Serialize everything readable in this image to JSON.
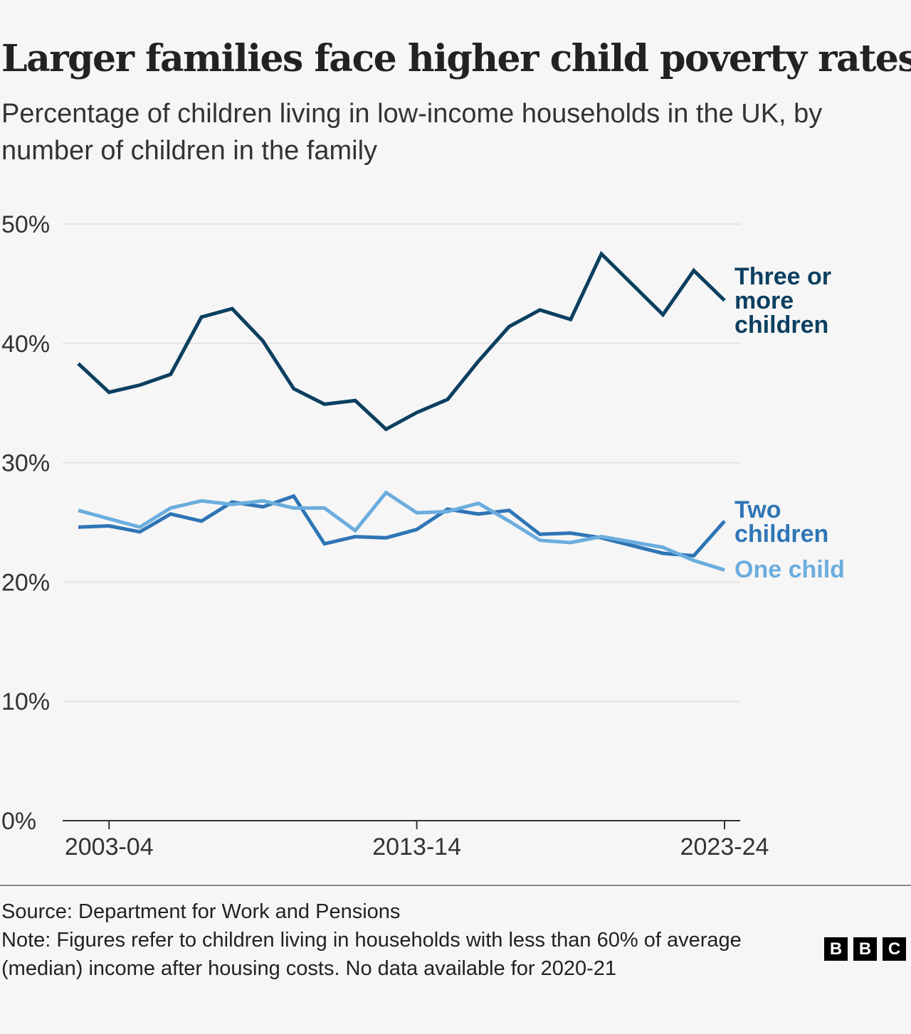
{
  "title": "Larger families face higher child poverty rates",
  "subtitle": "Percentage of children living in low-income households in the UK, by number of children in the family",
  "footer": {
    "source": "Source: Department for Work and Pensions",
    "note": "Note: Figures refer to children living in households with less than 60% of average (median) income after housing costs. No data available for 2020-21",
    "logo": "BBC"
  },
  "chart_data": {
    "type": "line",
    "title": "Larger families face higher child poverty rates",
    "xlabel": "",
    "ylabel": "",
    "ylim": [
      0,
      50
    ],
    "y_ticks": [
      "0%",
      "10%",
      "20%",
      "30%",
      "40%",
      "50%"
    ],
    "y_tick_values": [
      0,
      10,
      20,
      30,
      40,
      50
    ],
    "x_tick_labels": [
      "2003-04",
      "2013-14",
      "2023-24"
    ],
    "x": [
      "2002-03",
      "2003-04",
      "2004-05",
      "2005-06",
      "2006-07",
      "2007-08",
      "2008-09",
      "2009-10",
      "2010-11",
      "2011-12",
      "2012-13",
      "2013-14",
      "2014-15",
      "2015-16",
      "2016-17",
      "2017-18",
      "2018-19",
      "2019-20",
      "2020-21",
      "2021-22",
      "2022-23",
      "2023-24"
    ],
    "grid": true,
    "legend": "direct labels at right end of lines",
    "series": [
      {
        "name": "Three or more children",
        "label_lines": [
          "Three or",
          "more",
          "children"
        ],
        "color": "#0b3f60",
        "values": [
          38.3,
          35.9,
          36.5,
          37.4,
          42.2,
          42.9,
          40.2,
          36.2,
          34.9,
          35.2,
          32.8,
          34.2,
          35.3,
          38.5,
          41.4,
          42.8,
          42.0,
          47.5,
          null,
          42.4,
          46.1,
          43.6
        ]
      },
      {
        "name": "Two children",
        "label_lines": [
          "Two",
          "children"
        ],
        "color": "#2e75b6",
        "values": [
          24.6,
          24.7,
          24.2,
          25.7,
          25.1,
          26.7,
          26.3,
          27.2,
          23.2,
          23.8,
          23.7,
          24.4,
          26.1,
          25.7,
          26.0,
          24.0,
          24.1,
          23.7,
          null,
          22.4,
          22.2,
          25.1
        ]
      },
      {
        "name": "One child",
        "label_lines": [
          "One child"
        ],
        "color": "#6badde",
        "values": [
          26.0,
          25.3,
          24.6,
          26.2,
          26.8,
          26.5,
          26.8,
          26.2,
          26.2,
          24.3,
          27.5,
          25.8,
          25.9,
          26.6,
          25.1,
          23.5,
          23.3,
          23.8,
          null,
          22.9,
          21.8,
          21.0
        ]
      }
    ]
  }
}
